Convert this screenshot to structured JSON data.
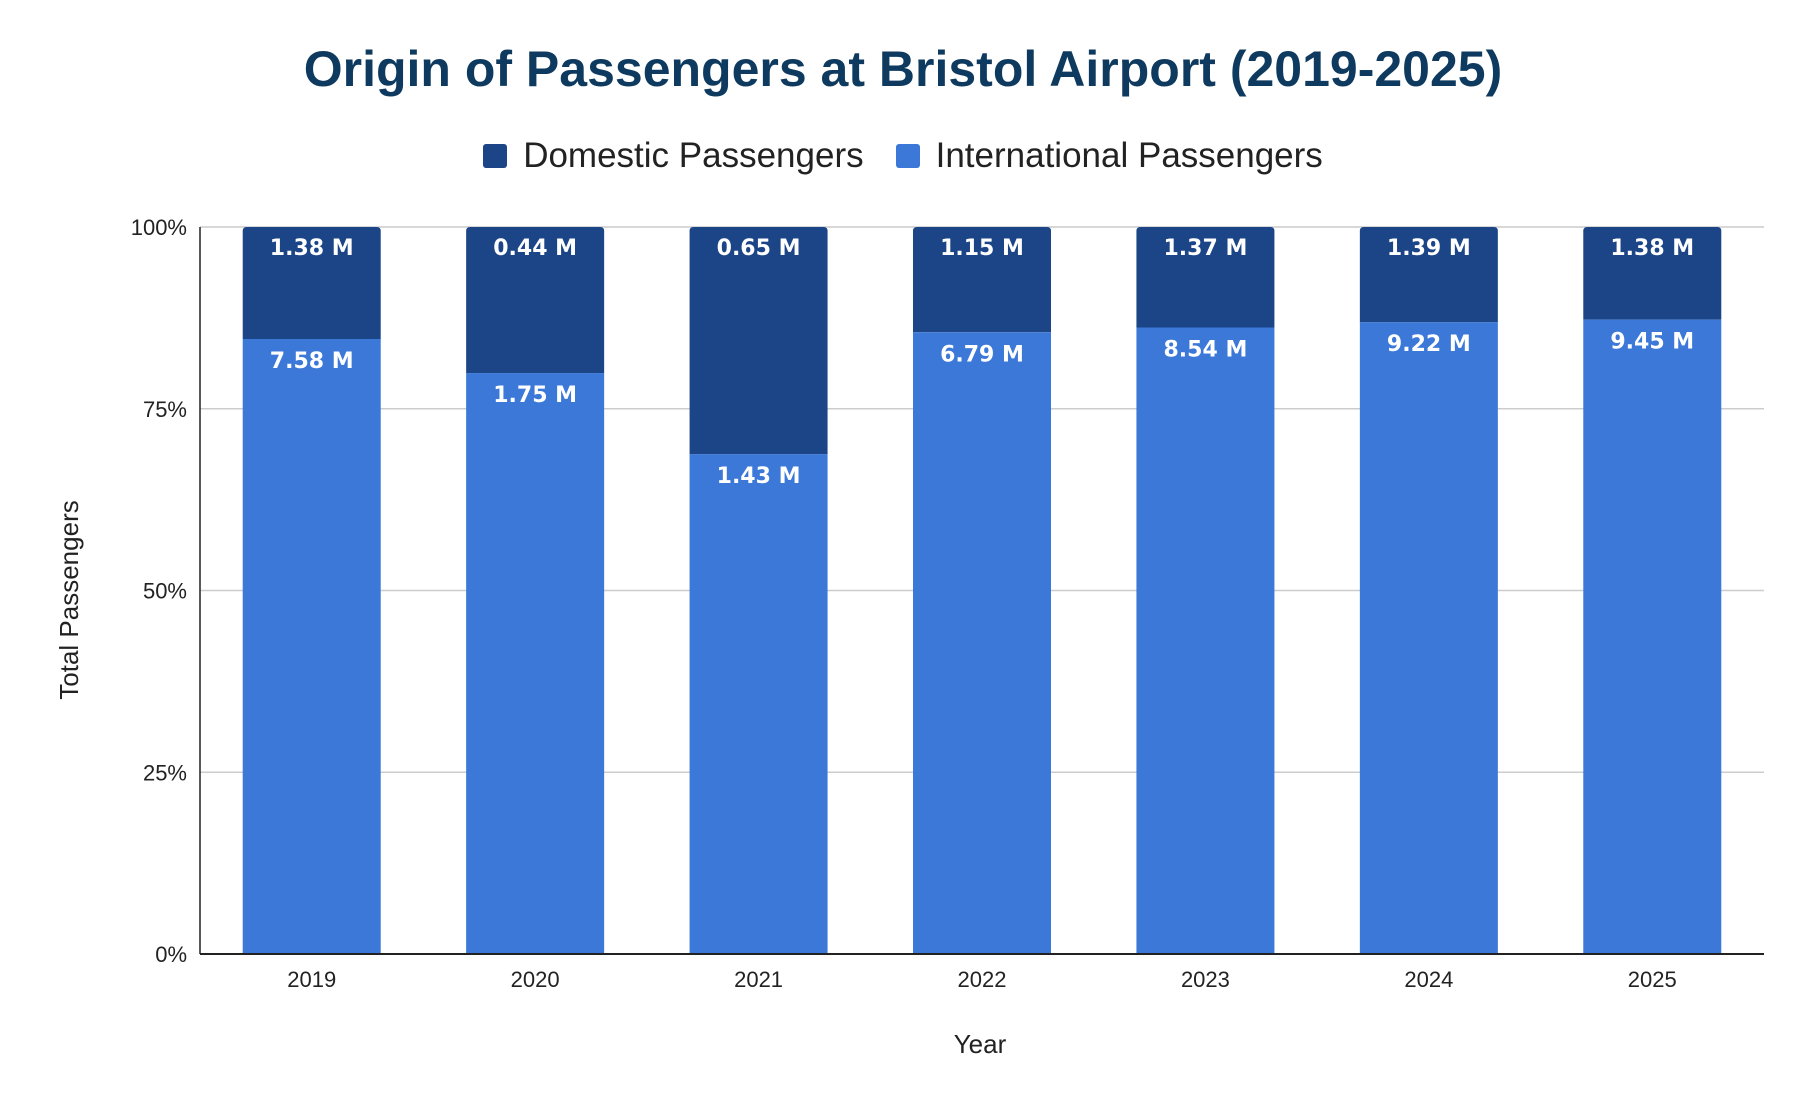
{
  "chart_data": {
    "type": "bar",
    "stacked": true,
    "normalized": true,
    "title": "Origin of Passengers at Bristol Airport (2019-2025)",
    "xlabel": "Year",
    "ylabel": "Total Passengers",
    "ylim": [
      0,
      100
    ],
    "y_ticks": [
      "0%",
      "25%",
      "50%",
      "75%",
      "100%"
    ],
    "grid": true,
    "legend_position": "top-center",
    "categories": [
      "2019",
      "2020",
      "2021",
      "2022",
      "2023",
      "2024",
      "2025"
    ],
    "series": [
      {
        "name": "International Passengers",
        "color": "#3c78d8",
        "values": [
          7.58,
          1.75,
          1.43,
          6.79,
          8.54,
          9.22,
          9.45
        ],
        "labels": [
          "7.58 M",
          "1.75 M",
          "1.43 M",
          "6.79 M",
          "8.54 M",
          "9.22 M",
          "9.45 M"
        ]
      },
      {
        "name": "Domestic Passengers",
        "color": "#1c4587",
        "values": [
          1.38,
          0.44,
          0.65,
          1.15,
          1.37,
          1.39,
          1.38
        ],
        "labels": [
          "1.38 M",
          "0.44 M",
          "0.65 M",
          "1.15 M",
          "1.37 M",
          "1.39 M",
          "1.38 M"
        ]
      }
    ]
  }
}
